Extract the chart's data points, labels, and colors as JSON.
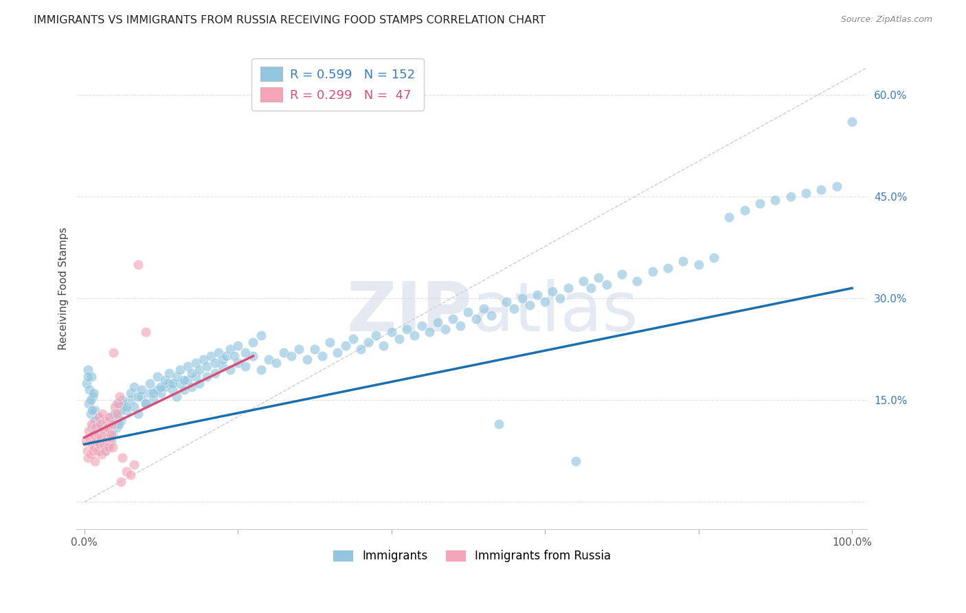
{
  "title": "IMMIGRANTS VS IMMIGRANTS FROM RUSSIA RECEIVING FOOD STAMPS CORRELATION CHART",
  "source": "Source: ZipAtlas.com",
  "ylabel": "Receiving Food Stamps",
  "watermark": "ZIPatlas",
  "xlim": [
    -0.01,
    1.02
  ],
  "ylim": [
    -0.04,
    0.67
  ],
  "yticks": [
    0.0,
    0.15,
    0.3,
    0.45,
    0.6
  ],
  "yticklabels": [
    "",
    "15.0%",
    "30.0%",
    "45.0%",
    "60.0%"
  ],
  "xtick_positions": [
    0.0,
    0.2,
    0.4,
    0.6,
    0.8,
    1.0
  ],
  "xticklabels": [
    "0.0%",
    "",
    "",
    "",
    "",
    "100.0%"
  ],
  "blue_color": "#92c5de",
  "pink_color": "#f4a6b8",
  "blue_line_color": "#1a6faf",
  "pink_line_color": "#d94f7a",
  "diag_line_color": "#cccccc",
  "grid_color": "#e0e0e0",
  "blue_trend_x": [
    0.0,
    1.0
  ],
  "blue_trend_y": [
    0.085,
    0.315
  ],
  "pink_trend_x": [
    0.0,
    0.22
  ],
  "pink_trend_y": [
    0.095,
    0.215
  ],
  "diag_line_x": [
    0.0,
    1.02
  ],
  "diag_line_y": [
    0.0,
    0.64
  ],
  "background_color": "#ffffff",
  "title_fontsize": 11.5,
  "ylabel_fontsize": 11,
  "tick_fontsize": 11,
  "ytick_color": "#3a7abf",
  "xtick_color": "#555555",
  "blue_x": [
    0.003,
    0.005,
    0.006,
    0.007,
    0.008,
    0.009,
    0.01,
    0.011,
    0.012,
    0.013,
    0.014,
    0.015,
    0.016,
    0.017,
    0.018,
    0.019,
    0.02,
    0.021,
    0.022,
    0.023,
    0.024,
    0.025,
    0.026,
    0.027,
    0.028,
    0.029,
    0.03,
    0.031,
    0.032,
    0.033,
    0.034,
    0.035,
    0.036,
    0.037,
    0.038,
    0.04,
    0.042,
    0.044,
    0.046,
    0.048,
    0.05,
    0.055,
    0.06,
    0.065,
    0.07,
    0.075,
    0.08,
    0.085,
    0.09,
    0.095,
    0.1,
    0.105,
    0.11,
    0.115,
    0.12,
    0.125,
    0.13,
    0.135,
    0.14,
    0.145,
    0.15,
    0.16,
    0.17,
    0.18,
    0.19,
    0.2,
    0.21,
    0.22,
    0.23,
    0.24,
    0.25,
    0.26,
    0.27,
    0.28,
    0.29,
    0.3,
    0.31,
    0.32,
    0.33,
    0.34,
    0.35,
    0.36,
    0.37,
    0.38,
    0.39,
    0.4,
    0.41,
    0.42,
    0.43,
    0.44,
    0.45,
    0.46,
    0.47,
    0.48,
    0.49,
    0.5,
    0.51,
    0.52,
    0.53,
    0.54,
    0.55,
    0.56,
    0.57,
    0.58,
    0.59,
    0.6,
    0.61,
    0.62,
    0.63,
    0.64,
    0.65,
    0.66,
    0.67,
    0.68,
    0.7,
    0.72,
    0.74,
    0.76,
    0.78,
    0.8,
    0.82,
    0.84,
    0.86,
    0.88,
    0.9,
    0.92,
    0.94,
    0.96,
    0.98,
    1.0,
    0.005,
    0.008,
    0.01,
    0.012,
    0.015,
    0.018,
    0.02,
    0.022,
    0.025,
    0.028,
    0.03,
    0.032,
    0.035,
    0.038,
    0.04,
    0.042,
    0.045,
    0.048,
    0.05,
    0.055,
    0.06,
    0.065,
    0.07,
    0.075,
    0.08,
    0.085,
    0.09,
    0.095,
    0.1,
    0.105,
    0.11,
    0.115,
    0.12,
    0.125,
    0.13,
    0.135,
    0.14,
    0.145,
    0.15,
    0.155,
    0.16,
    0.165,
    0.17,
    0.175,
    0.18,
    0.185,
    0.19,
    0.195,
    0.2,
    0.21,
    0.22,
    0.23
  ],
  "blue_y": [
    0.175,
    0.195,
    0.145,
    0.165,
    0.13,
    0.185,
    0.11,
    0.155,
    0.1,
    0.12,
    0.135,
    0.09,
    0.115,
    0.125,
    0.1,
    0.08,
    0.095,
    0.075,
    0.115,
    0.09,
    0.085,
    0.1,
    0.11,
    0.095,
    0.075,
    0.085,
    0.1,
    0.115,
    0.095,
    0.085,
    0.105,
    0.09,
    0.12,
    0.1,
    0.115,
    0.13,
    0.11,
    0.125,
    0.14,
    0.12,
    0.145,
    0.135,
    0.15,
    0.14,
    0.13,
    0.155,
    0.145,
    0.16,
    0.15,
    0.165,
    0.16,
    0.17,
    0.175,
    0.165,
    0.155,
    0.175,
    0.165,
    0.18,
    0.17,
    0.185,
    0.175,
    0.185,
    0.19,
    0.2,
    0.195,
    0.205,
    0.2,
    0.215,
    0.195,
    0.21,
    0.205,
    0.22,
    0.215,
    0.225,
    0.21,
    0.225,
    0.215,
    0.235,
    0.22,
    0.23,
    0.24,
    0.225,
    0.235,
    0.245,
    0.23,
    0.25,
    0.24,
    0.255,
    0.245,
    0.26,
    0.25,
    0.265,
    0.255,
    0.27,
    0.26,
    0.28,
    0.27,
    0.285,
    0.275,
    0.115,
    0.295,
    0.285,
    0.3,
    0.29,
    0.305,
    0.295,
    0.31,
    0.3,
    0.315,
    0.06,
    0.325,
    0.315,
    0.33,
    0.32,
    0.335,
    0.325,
    0.34,
    0.345,
    0.355,
    0.35,
    0.36,
    0.42,
    0.43,
    0.44,
    0.445,
    0.45,
    0.455,
    0.46,
    0.465,
    0.56,
    0.185,
    0.15,
    0.135,
    0.16,
    0.12,
    0.09,
    0.075,
    0.115,
    0.08,
    0.095,
    0.11,
    0.125,
    0.1,
    0.12,
    0.13,
    0.145,
    0.115,
    0.135,
    0.15,
    0.14,
    0.16,
    0.17,
    0.155,
    0.165,
    0.145,
    0.175,
    0.16,
    0.185,
    0.17,
    0.18,
    0.19,
    0.175,
    0.185,
    0.195,
    0.18,
    0.2,
    0.19,
    0.205,
    0.195,
    0.21,
    0.2,
    0.215,
    0.205,
    0.22,
    0.21,
    0.215,
    0.225,
    0.215,
    0.23,
    0.22,
    0.235,
    0.245
  ],
  "pink_x": [
    0.002,
    0.004,
    0.005,
    0.006,
    0.007,
    0.008,
    0.009,
    0.01,
    0.011,
    0.012,
    0.013,
    0.014,
    0.015,
    0.016,
    0.017,
    0.018,
    0.019,
    0.02,
    0.021,
    0.022,
    0.023,
    0.024,
    0.025,
    0.026,
    0.027,
    0.028,
    0.029,
    0.03,
    0.031,
    0.032,
    0.033,
    0.034,
    0.035,
    0.036,
    0.037,
    0.038,
    0.04,
    0.042,
    0.044,
    0.046,
    0.048,
    0.05,
    0.055,
    0.06,
    0.065,
    0.07,
    0.08
  ],
  "pink_y": [
    0.09,
    0.075,
    0.065,
    0.105,
    0.095,
    0.07,
    0.115,
    0.085,
    0.075,
    0.1,
    0.08,
    0.06,
    0.11,
    0.09,
    0.075,
    0.1,
    0.125,
    0.085,
    0.115,
    0.095,
    0.07,
    0.13,
    0.085,
    0.105,
    0.075,
    0.12,
    0.09,
    0.095,
    0.11,
    0.08,
    0.125,
    0.095,
    0.1,
    0.115,
    0.08,
    0.22,
    0.14,
    0.13,
    0.145,
    0.155,
    0.03,
    0.065,
    0.045,
    0.04,
    0.055,
    0.35,
    0.25
  ]
}
